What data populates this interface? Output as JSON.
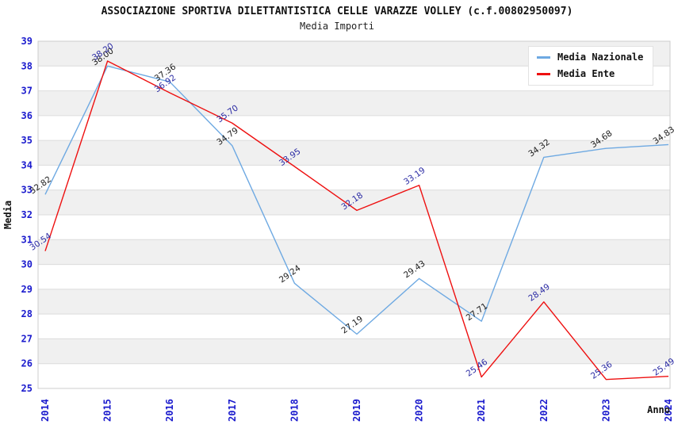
{
  "header": {
    "title": "ASSOCIAZIONE SPORTIVA DILETTANTISTICA CELLE VARAZZE VOLLEY (c.f.00802950097)",
    "subtitle": "Media Importi"
  },
  "chart_data": {
    "type": "line",
    "x": [
      2014,
      2015,
      2016,
      2017,
      2018,
      2019,
      2020,
      2021,
      2022,
      2023,
      2024
    ],
    "series": [
      {
        "name": "Media Nazionale",
        "color": "#6EA9E2",
        "label_color": "#1c1c1c",
        "values": [
          32.82,
          38.0,
          37.36,
          34.79,
          29.24,
          27.19,
          29.43,
          27.71,
          34.32,
          34.68,
          34.83
        ],
        "value_labels": [
          "32.82",
          "38.00",
          "37.36",
          "34.79",
          "29.24",
          "27.19",
          "29.43",
          "27.71",
          "34.32",
          "34.68",
          "34.83"
        ]
      },
      {
        "name": "Media Ente",
        "color": "#EE1010",
        "label_color": "#2b2ba4",
        "values": [
          30.54,
          38.2,
          36.92,
          35.7,
          33.95,
          32.18,
          33.19,
          25.46,
          28.49,
          25.36,
          25.49
        ],
        "value_labels": [
          "30.54",
          "38.20",
          "36.92",
          "35.70",
          "33.95",
          "32.18",
          "33.19",
          "25.46",
          "28.49",
          "25.36",
          "25.49"
        ]
      }
    ],
    "xlabel": "Anno",
    "ylabel": "Media",
    "ylim": [
      25,
      39
    ],
    "y_ticks": [
      25,
      26,
      27,
      28,
      29,
      30,
      31,
      32,
      33,
      34,
      35,
      36,
      37,
      38,
      39
    ],
    "grid": true,
    "legend_position": "top-right"
  },
  "colors": {
    "band": "#f0f0f0",
    "grid": "#dcdcdc",
    "plot_border": "#cccccc",
    "tick_label": "#1a1acd",
    "background": "#ffffff"
  }
}
